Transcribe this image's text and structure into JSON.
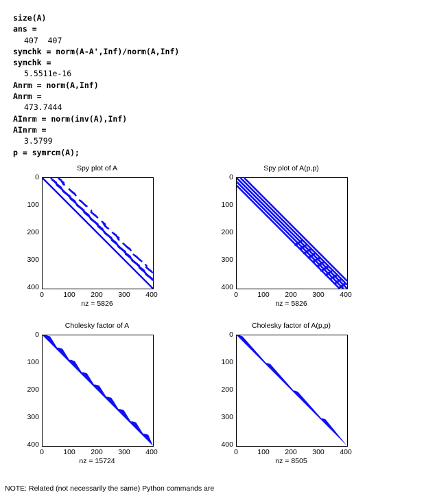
{
  "console": {
    "lines": [
      {
        "type": "cmd",
        "text": "size(A)"
      },
      {
        "type": "cmd",
        "text": "ans ="
      },
      {
        "type": "out",
        "text": "407  407"
      },
      {
        "type": "cmd",
        "text": "symchk = norm(A-A',Inf)/norm(A,Inf)"
      },
      {
        "type": "cmd",
        "text": "symchk ="
      },
      {
        "type": "out",
        "text": "5.5511e-16"
      },
      {
        "type": "cmd",
        "text": "Anrm = norm(A,Inf)"
      },
      {
        "type": "cmd",
        "text": "Anrm ="
      },
      {
        "type": "out",
        "text": "473.7444"
      },
      {
        "type": "cmd",
        "text": "AInrm = norm(inv(A),Inf)"
      },
      {
        "type": "cmd",
        "text": "AInrm ="
      },
      {
        "type": "out",
        "text": "3.5799"
      },
      {
        "type": "cmd",
        "text": "p = symrcm(A);"
      }
    ]
  },
  "plots": [
    {
      "title": "Spy plot of A",
      "nz_label": "nz = 5826",
      "kind": "spy_original"
    },
    {
      "title": "Spy plot of A(p,p)",
      "nz_label": "nz = 5826",
      "kind": "spy_rcm"
    },
    {
      "title": "Cholesky factor of A",
      "nz_label": "nz = 15724",
      "kind": "chol_original"
    },
    {
      "title": "Cholesky factor of A(p,p)",
      "nz_label": "nz = 8505",
      "kind": "chol_rcm"
    }
  ],
  "axes": {
    "x_ticks": [
      "0",
      "100",
      "200",
      "300",
      "400"
    ],
    "y_ticks": [
      "0",
      "100",
      "200",
      "300",
      "400"
    ],
    "range": [
      0,
      407
    ]
  },
  "colors": {
    "marker": "#1010f0",
    "axis": "#000000"
  },
  "note": "NOTE: Related (not necessarily the same) Python commands are"
}
